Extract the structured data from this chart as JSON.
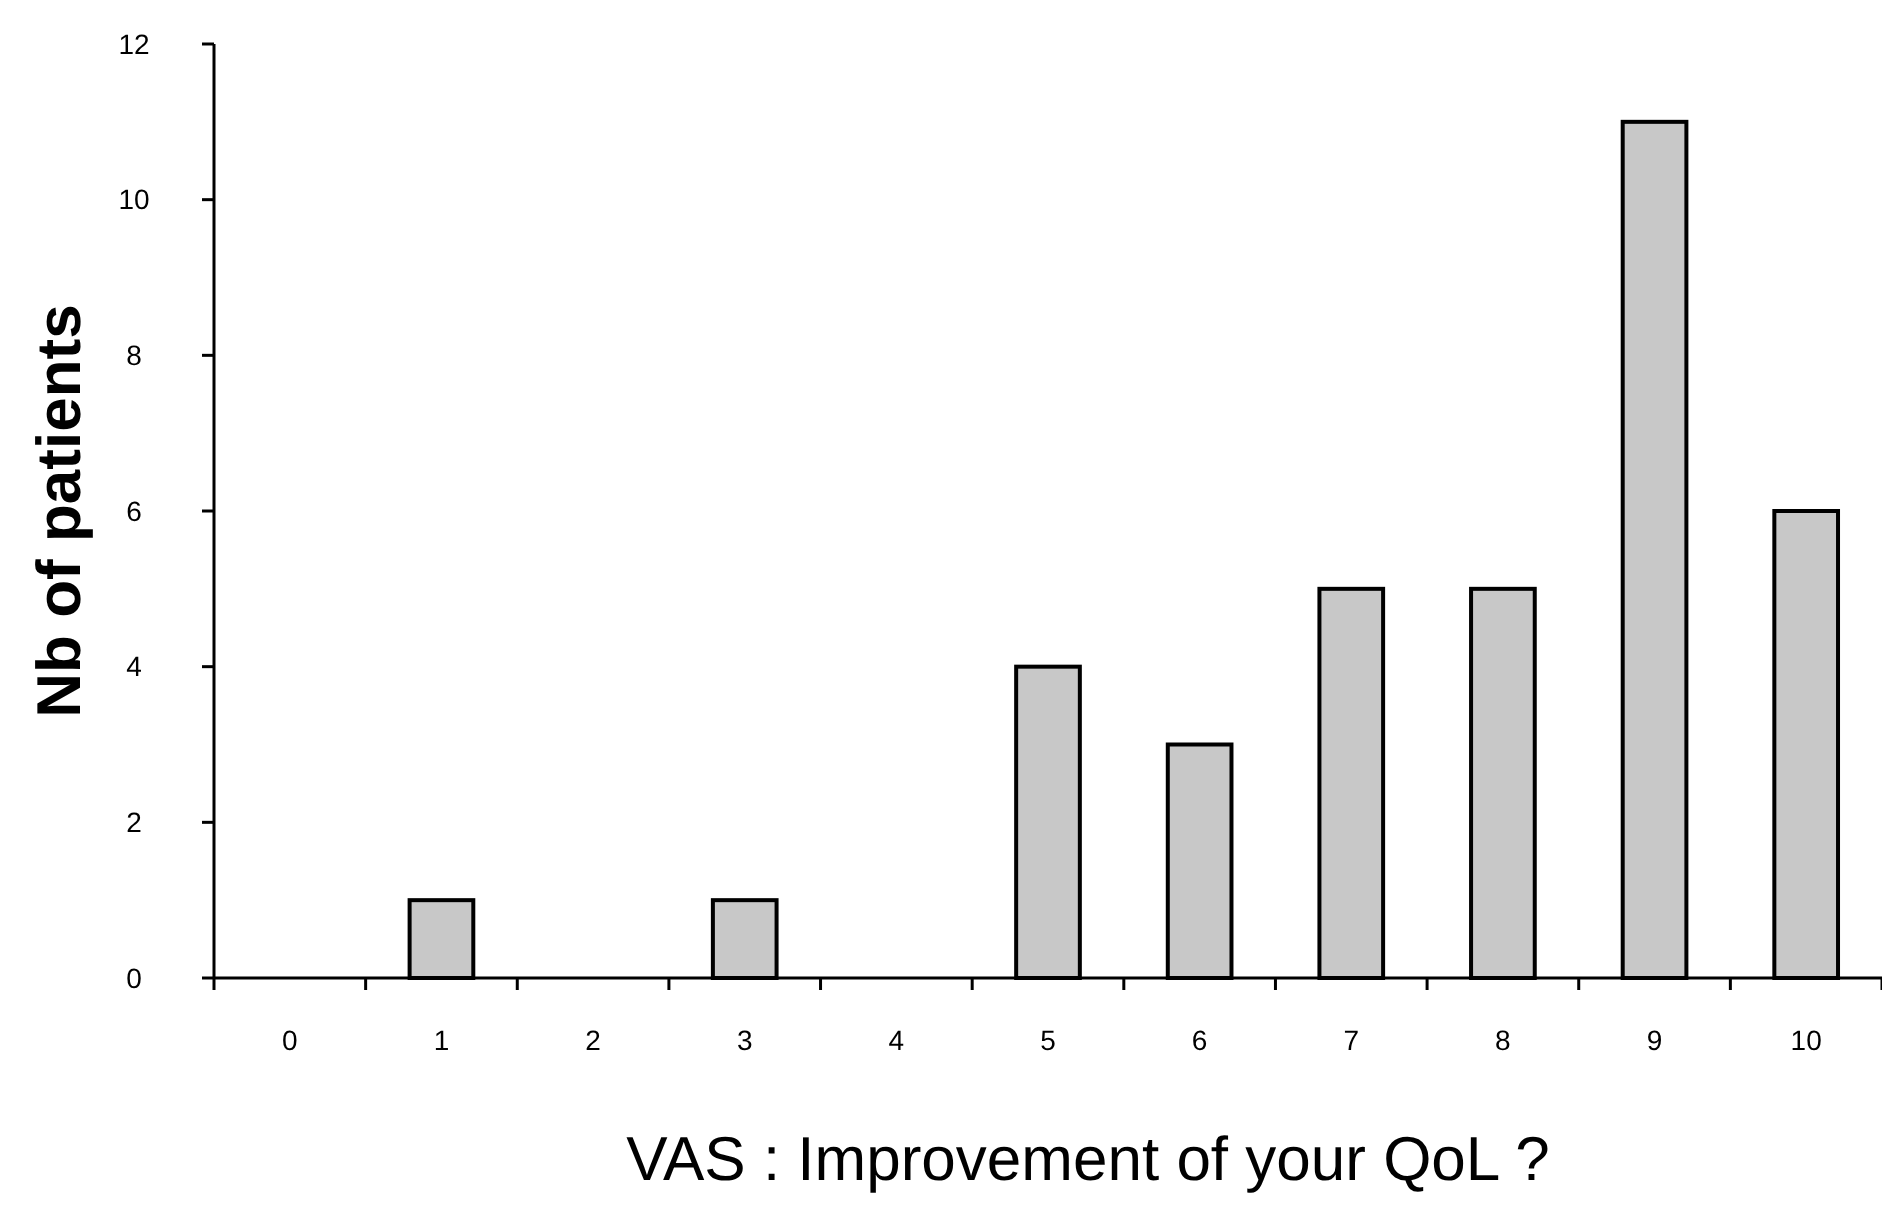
{
  "chart_data": {
    "type": "bar",
    "xlabel": "VAS : Improvement of your QoL ?",
    "ylabel": "Nb of patients",
    "categories": [
      "0",
      "1",
      "2",
      "3",
      "4",
      "5",
      "6",
      "7",
      "8",
      "9",
      "10"
    ],
    "values": [
      0,
      1,
      0,
      1,
      0,
      4,
      3,
      5,
      5,
      11,
      6
    ],
    "color": "#c8c8c8",
    "ylim": [
      0,
      12
    ],
    "yticks": [
      0,
      2,
      4,
      6,
      8,
      10,
      12
    ],
    "grid": false
  }
}
